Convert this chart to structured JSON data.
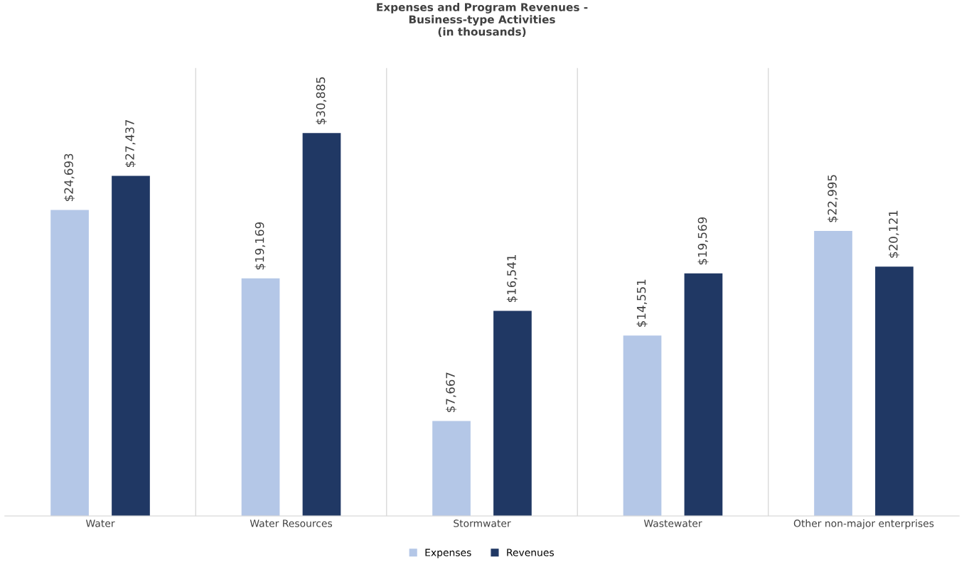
{
  "chart_data": {
    "type": "bar",
    "title": "Expenses and Program Revenues -\nBusiness-type Activities\n(in thousands)",
    "categories": [
      "Water",
      "Water Resources",
      "Stormwater",
      "Wastewater",
      "Other non-major enterprises"
    ],
    "series": [
      {
        "name": "Expenses",
        "color": "#b4c7e7",
        "values": [
          24693,
          19169,
          7667,
          14551,
          22995
        ],
        "value_labels": [
          "$24,693",
          "$19,169",
          "$7,667",
          "$14,551",
          "$22,995"
        ]
      },
      {
        "name": "Revenues",
        "color": "#203864",
        "values": [
          27437,
          30885,
          16541,
          19569,
          20121
        ],
        "value_labels": [
          "$27,437",
          "$30,885",
          "$16,541",
          "$19,569",
          "$20,121"
        ]
      }
    ],
    "grid": "x",
    "legend": "bottom",
    "tick_labels": "x"
  }
}
